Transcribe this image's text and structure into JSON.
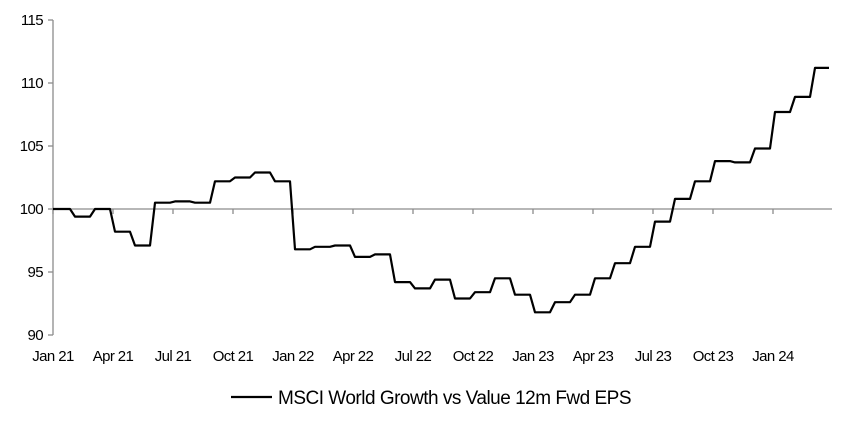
{
  "chart_data": {
    "type": "line",
    "title": "",
    "xlabel": "",
    "ylabel": "",
    "ylim": [
      90,
      115
    ],
    "yticks": [
      90,
      95,
      100,
      105,
      110,
      115
    ],
    "ytick_labels": [
      "90",
      "95",
      "100",
      "105",
      "110",
      "115"
    ],
    "xtick_labels": [
      "Jan 21",
      "Apr 21",
      "Jul 21",
      "Oct 21",
      "Jan 22",
      "Apr 22",
      "Jul 22",
      "Oct 22",
      "Jan 23",
      "Apr 23",
      "Jul 23",
      "Oct 23",
      "Jan 24"
    ],
    "x_axis_crosses_at": 100,
    "grid": false,
    "legend_position": "bottom-center",
    "x": [
      "Jan 21",
      "Feb 21",
      "Mar 21",
      "Apr 21",
      "May 21",
      "Jun 21",
      "Jul 21",
      "Aug 21",
      "Sep 21",
      "Oct 21",
      "Nov 21",
      "Dec 21",
      "Jan 22",
      "Feb 22",
      "Mar 22",
      "Apr 22",
      "May 22",
      "Jun 22",
      "Jul 22",
      "Aug 22",
      "Sep 22",
      "Oct 22",
      "Nov 22",
      "Dec 22",
      "Jan 23",
      "Feb 23",
      "Mar 23",
      "Apr 23",
      "May 23",
      "Jun 23",
      "Jul 23",
      "Aug 23",
      "Sep 23",
      "Oct 23",
      "Nov 23",
      "Dec 23",
      "Jan 24",
      "Feb 24",
      "Mar 24"
    ],
    "series": [
      {
        "name": "MSCI World Growth vs Value 12m Fwd EPS",
        "color": "#000000",
        "values": [
          100.0,
          99.4,
          100.0,
          98.2,
          97.1,
          100.5,
          100.6,
          100.5,
          102.2,
          102.5,
          102.9,
          102.2,
          96.8,
          97.0,
          97.1,
          96.2,
          96.4,
          94.2,
          93.7,
          94.4,
          92.9,
          93.4,
          94.5,
          93.2,
          91.8,
          92.6,
          93.2,
          94.5,
          95.7,
          97.0,
          99.0,
          100.8,
          102.2,
          103.8,
          103.7,
          104.8,
          107.7,
          108.9,
          111.2
        ]
      }
    ],
    "axis_color": "#8c8c8c"
  }
}
